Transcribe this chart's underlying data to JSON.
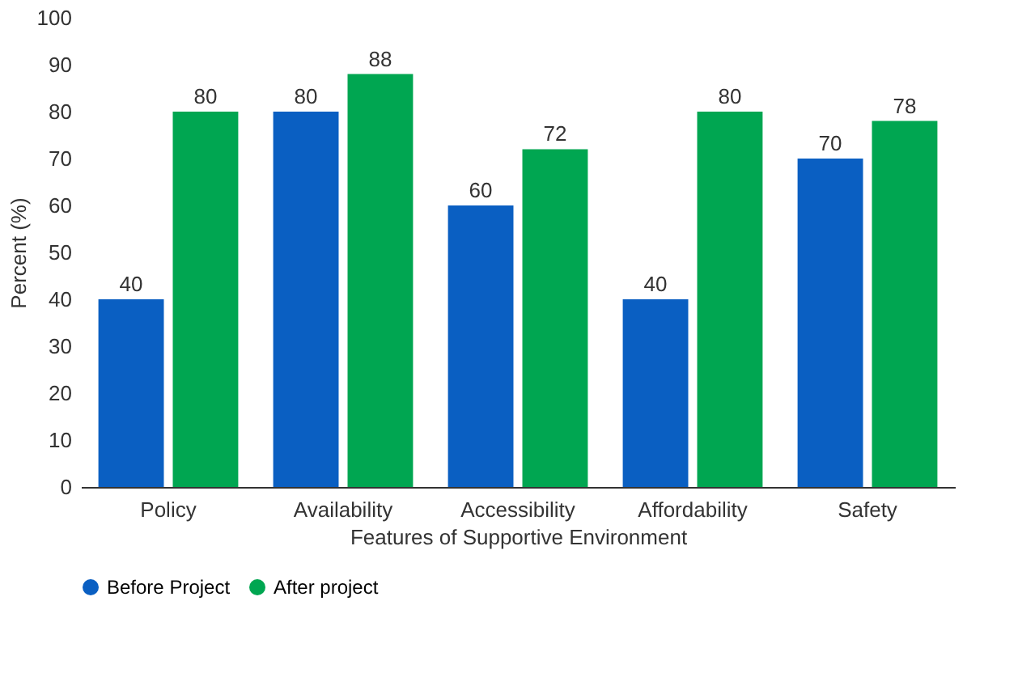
{
  "chart_data": {
    "type": "bar",
    "xlabel": "Features of Supportive Environment",
    "ylabel": "Percent (%)",
    "categories": [
      "Policy",
      "Availability",
      "Accessibility",
      "Affordability",
      "Safety"
    ],
    "series": [
      {
        "name": "Before Project",
        "color": "#0a5fc2",
        "values": [
          40,
          80,
          60,
          40,
          70
        ]
      },
      {
        "name": "After project",
        "color": "#00a651",
        "values": [
          80,
          88,
          72,
          80,
          78
        ]
      }
    ],
    "ylim": [
      0,
      100
    ],
    "yticks": [
      0,
      10,
      20,
      30,
      40,
      50,
      60,
      70,
      80,
      90,
      100
    ],
    "grid": false,
    "legend": "bottom",
    "data_labels": true
  }
}
